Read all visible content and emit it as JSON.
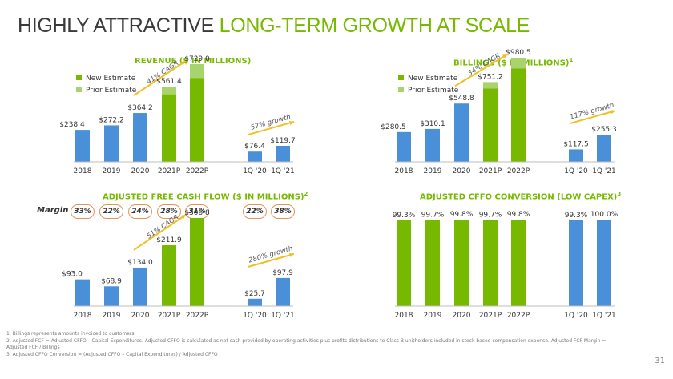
{
  "title": {
    "part1": "HIGHLY ATTRACTIVE",
    "part2": "LONG-TERM GROWTH AT SCALE"
  },
  "colors": {
    "green": "#76b900",
    "light_green": "#a9d36c",
    "blue": "#4a90d9",
    "badge_border": "#e4935a",
    "arrow": "#f0c020"
  },
  "legend": {
    "new": "New Estimate",
    "prior": "Prior Estimate"
  },
  "margin": {
    "label": "Margin",
    "values": [
      "33%",
      "22%",
      "24%",
      "28%",
      "31%",
      "22%",
      "38%"
    ]
  },
  "chart_data": [
    {
      "type": "bar",
      "title": "REVENUE ($ IN MILLIONS)",
      "categories": [
        "2018",
        "2019",
        "2020",
        "2021P",
        "2022P",
        "1Q '20",
        "1Q '21"
      ],
      "values": [
        238.4,
        272.2,
        364.2,
        561.4,
        729.0,
        76.4,
        119.7
      ],
      "labels": [
        "$238.4",
        "$272.2",
        "$364.2",
        "$561.4",
        "$729.0",
        "$76.4",
        "$119.7"
      ],
      "prior_estimate": [
        null,
        null,
        null,
        504,
        626,
        null,
        null
      ],
      "bar_types": [
        "blue",
        "blue",
        "blue",
        "green",
        "green",
        "blue",
        "blue"
      ],
      "legend": true,
      "annotations": [
        {
          "text": "41% CAGR"
        },
        {
          "text": "57% growth"
        }
      ]
    },
    {
      "type": "bar",
      "title": "BILLINGS ($ IN MILLIONS)",
      "footnote": "1",
      "categories": [
        "2018",
        "2019",
        "2020",
        "2021P",
        "2022P",
        "1Q '20",
        "1Q '21"
      ],
      "values": [
        280.5,
        310.1,
        548.8,
        751.2,
        980.5,
        117.5,
        255.3
      ],
      "labels": [
        "$280.5",
        "$310.1",
        "$548.8",
        "$751.2",
        "$980.5",
        "$117.5",
        "$255.3"
      ],
      "prior_estimate": [
        null,
        null,
        null,
        690,
        880,
        null,
        null
      ],
      "bar_types": [
        "blue",
        "blue",
        "blue",
        "green",
        "green",
        "blue",
        "blue"
      ],
      "legend": true,
      "annotations": [
        {
          "text": "34% CAGR"
        },
        {
          "text": "117% growth"
        }
      ]
    },
    {
      "type": "bar",
      "title": "ADJUSTED FREE CASH FLOW ($ IN MILLIONS)",
      "footnote": "2",
      "categories": [
        "2018",
        "2019",
        "2020",
        "2021P",
        "2022P",
        "1Q '20",
        "1Q '21"
      ],
      "values": [
        93.0,
        68.9,
        134.0,
        211.9,
        306.8,
        25.7,
        97.9
      ],
      "labels": [
        "$93.0",
        "$68.9",
        "$134.0",
        "$211.9",
        "$306.8",
        "$25.7",
        "$97.9"
      ],
      "bar_types": [
        "blue",
        "blue",
        "blue",
        "green",
        "green",
        "blue",
        "blue"
      ],
      "legend": false,
      "annotations": [
        {
          "text": "51% CAGR"
        },
        {
          "text": "280% growth"
        }
      ]
    },
    {
      "type": "bar",
      "title": "ADJUSTED CFFO CONVERSION (LOW CAPEX)",
      "footnote": "3",
      "categories": [
        "2018",
        "2019",
        "2020",
        "2021P",
        "2022P",
        "1Q '20",
        "1Q '21"
      ],
      "values": [
        99.3,
        99.7,
        99.8,
        99.7,
        99.8,
        99.3,
        100.0
      ],
      "labels": [
        "99.3%",
        "99.7%",
        "99.8%",
        "99.7%",
        "99.8%",
        "99.3%",
        "100.0%"
      ],
      "bar_types": [
        "green",
        "green",
        "green",
        "green",
        "green",
        "blue",
        "blue"
      ],
      "legend": false,
      "annotations": []
    }
  ],
  "footnotes": [
    "1. Billings represents amounts invoiced to customers",
    "2. Adjusted FCF = Adjusted CFFO – Capital Expenditures. Adjusted CFFO is calculated as net cash provided by operating activities plus profits distributions to Class B unitholders included in stock based compensation expense. Adjusted FCF Margin =",
    "    Adjusted FCF / Billings",
    "3. Adjusted CFFO Conversion = (Adjusted CFFO – Capital Expenditures) / Adjusted CFFO"
  ],
  "page_number": "31"
}
